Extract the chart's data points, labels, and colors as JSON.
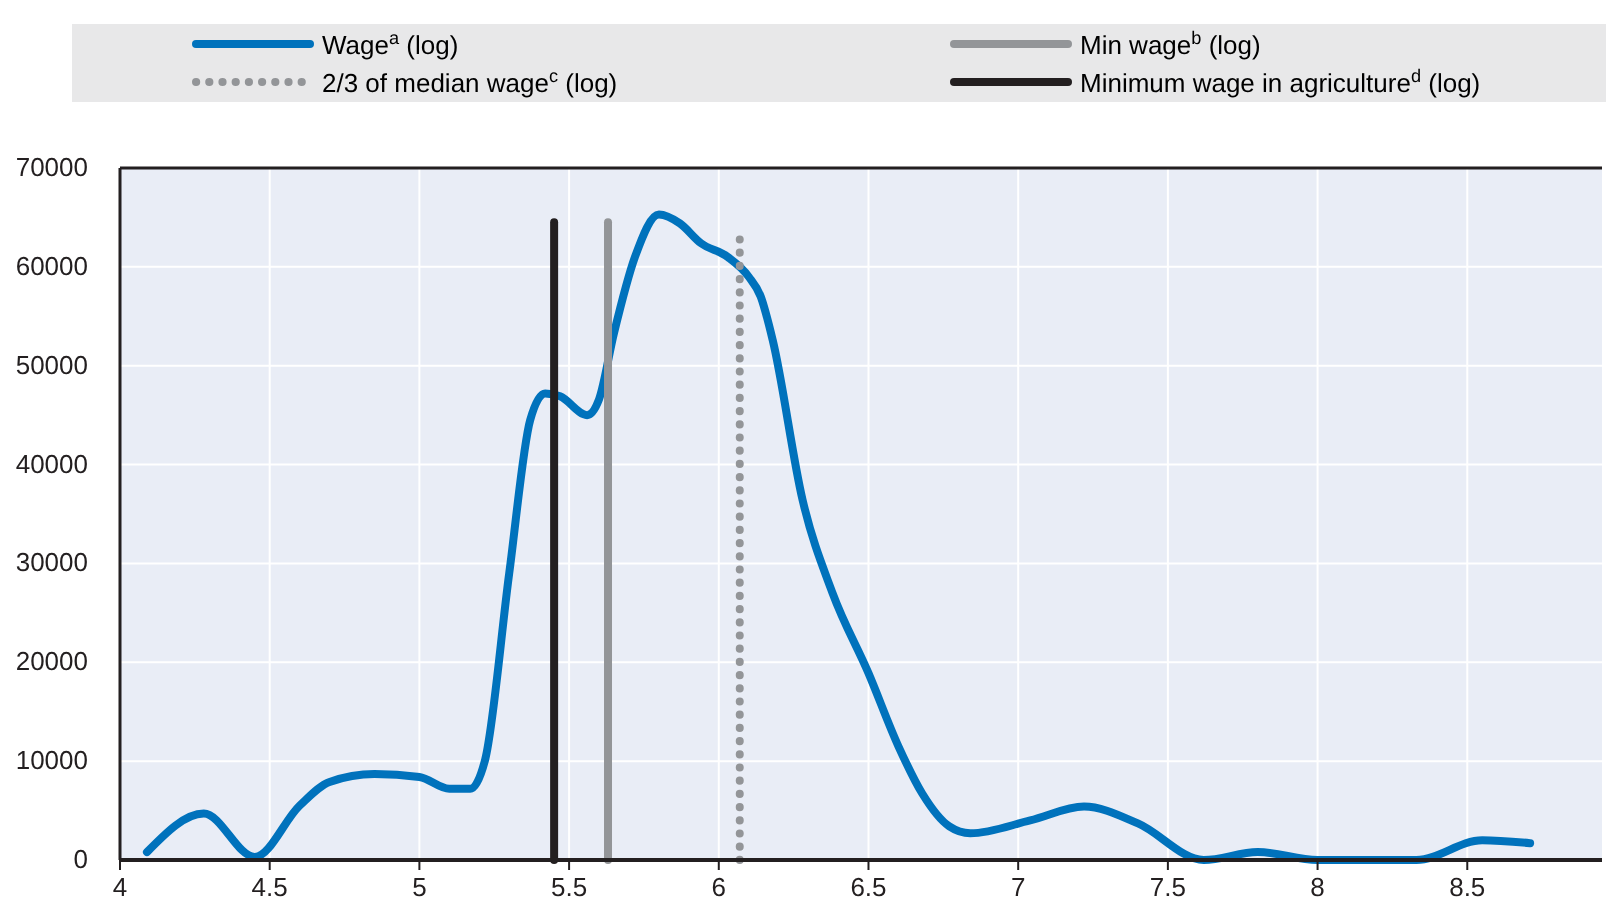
{
  "chart_data": {
    "type": "line",
    "xlim": [
      4,
      8.95
    ],
    "xticks": [
      4,
      4.5,
      5,
      5.5,
      6,
      6.5,
      7,
      7.5,
      8,
      8.5
    ],
    "ylim": [
      0,
      70000
    ],
    "yticks": [
      0,
      10000,
      20000,
      30000,
      40000,
      50000,
      60000,
      70000
    ],
    "grid": true,
    "legend": "top",
    "marker": "none",
    "series": [
      {
        "name": "Wage$^{a}$ (log)",
        "color": "#0072bc",
        "line_style": "solid",
        "x": [
          4.09,
          4.28,
          4.45,
          4.6,
          4.7,
          4.85,
          5.0,
          5.1,
          5.17,
          5.22,
          5.3,
          5.37,
          5.42,
          5.47,
          5.56,
          5.6,
          5.65,
          5.72,
          5.8,
          5.87,
          5.94,
          6.03,
          6.1,
          6.14,
          6.18,
          6.28,
          6.38,
          6.5,
          6.6,
          6.68,
          6.77,
          6.84,
          7.04,
          7.22,
          7.4,
          7.62,
          7.8,
          8.0,
          8.33,
          8.55,
          8.71
        ],
        "values": [
          800,
          4700,
          300,
          5500,
          7900,
          8700,
          8400,
          7200,
          7200,
          10200,
          29000,
          44500,
          47200,
          46900,
          45000,
          46600,
          53300,
          61000,
          65300,
          64400,
          62400,
          61000,
          59000,
          57000,
          52600,
          36400,
          27000,
          18900,
          11500,
          6700,
          3400,
          2700,
          4000,
          5400,
          3700,
          0,
          800,
          0,
          0,
          2000,
          1700
        ]
      },
      {
        "name": "Min wage$^{b}$ (log)",
        "color": "#939598",
        "line_style": "solid",
        "x": [
          5.63,
          5.63
        ],
        "values": [
          0,
          64500
        ]
      },
      {
        "name": "2/3 of median wage$^{c}$ (log)",
        "color": "#939598",
        "line_style": "dotted",
        "x": [
          6.07,
          6.07
        ],
        "values": [
          0,
          64000
        ]
      },
      {
        "name": "Minimum wage in agriculture$^{d}$ (log)",
        "color": "#231f20",
        "line_style": "solid",
        "x": [
          5.45,
          5.45
        ],
        "values": [
          0,
          64500
        ]
      }
    ]
  }
}
